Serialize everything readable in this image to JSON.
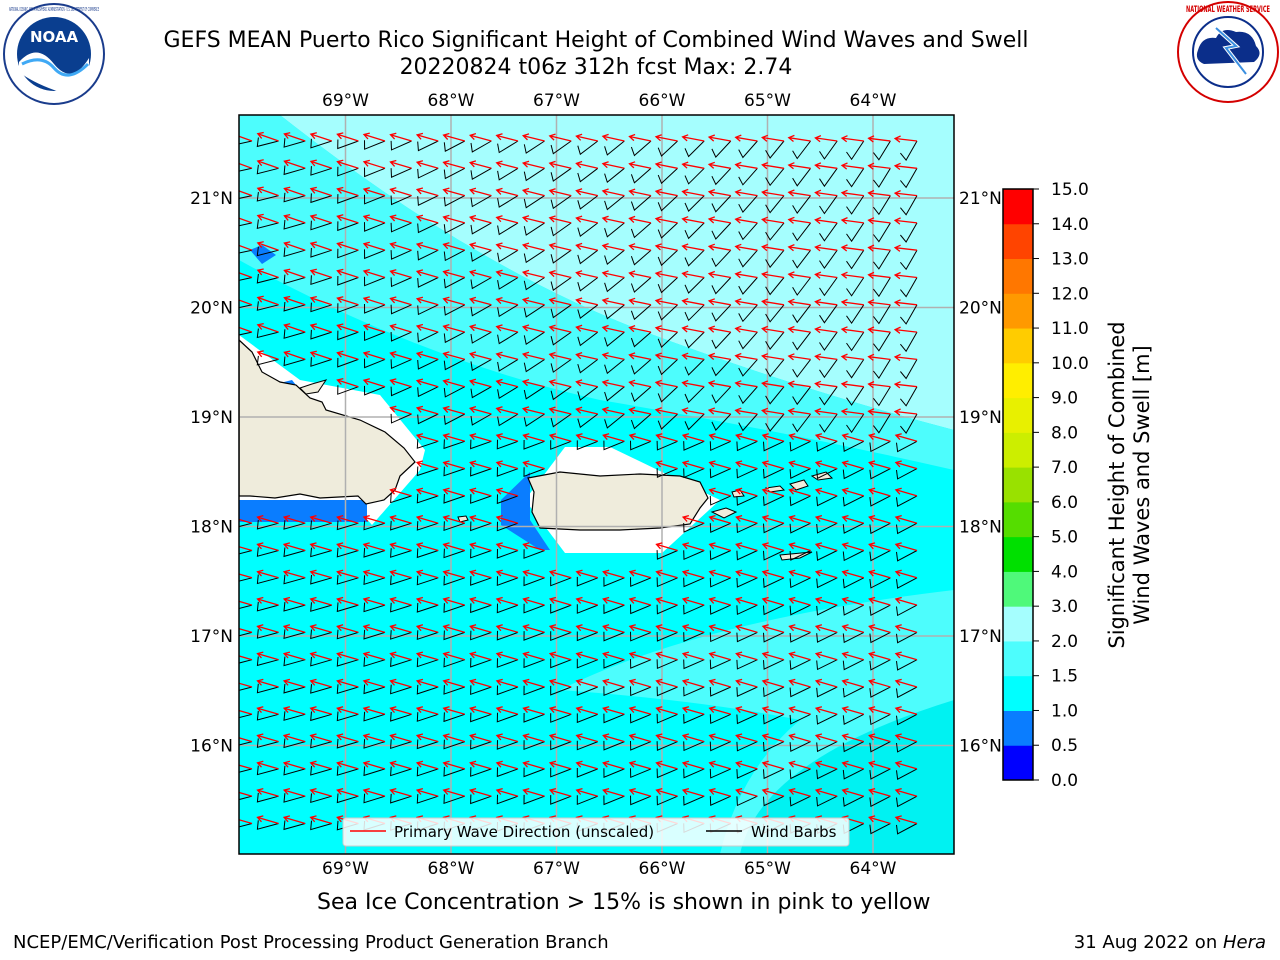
{
  "header": {
    "title_line1": "GEFS MEAN Puerto Rico Significant Height of Combined Wind Waves and Swell",
    "title_line2": "20220824 t06z 312h fcst   Max: 2.74"
  },
  "logos": {
    "left": {
      "icon": "noaa-logo-icon",
      "text": "NOAA",
      "ring_text": "NATIONAL OCEANIC AND ATMOSPHERIC ADMINISTRATION · U.S. DEPARTMENT OF COMMERCE"
    },
    "right": {
      "icon": "nws-logo-icon",
      "ring_text": "NATIONAL WEATHER SERVICE"
    }
  },
  "map": {
    "lon_ticks": [
      "69°W",
      "68°W",
      "67°W",
      "66°W",
      "65°W",
      "64°W"
    ],
    "lat_ticks_left": [
      "21°N",
      "20°N",
      "19°N",
      "18°N",
      "17°N",
      "16°N"
    ],
    "lat_ticks_right": [
      "21°N",
      "20°N",
      "19°N",
      "18°N",
      "17°N",
      "16°N"
    ],
    "legend": {
      "wave_label": "Primary Wave Direction (unscaled)",
      "barb_label": "Wind Barbs"
    },
    "colors": {
      "land": "#efecdc",
      "arrow": "#ff0000",
      "barb": "#000000",
      "grid": "#b0b0b0"
    }
  },
  "colorbar": {
    "label": "Significant Height of Combined\nWind Waves and Swell [m]",
    "label_line1": "Significant Height of Combined",
    "label_line2": "Wind Waves and Swell [m]",
    "ticks": [
      "0.0",
      "0.5",
      "1.0",
      "1.5",
      "2.0",
      "3.0",
      "4.0",
      "5.0",
      "6.0",
      "7.0",
      "8.0",
      "9.0",
      "10.0",
      "11.0",
      "12.0",
      "13.0",
      "14.0",
      "15.0"
    ],
    "colors": [
      "#0000ff",
      "#0a7dff",
      "#00ffff",
      "#4dfdfd",
      "#a5fefe",
      "#4ff97a",
      "#00e000",
      "#55dd00",
      "#99e100",
      "#ccee00",
      "#e8f000",
      "#ffee00",
      "#ffcc00",
      "#ff9900",
      "#ff7700",
      "#ff4400",
      "#ff0000"
    ]
  },
  "chart_data": {
    "type": "heatmap",
    "title": "GEFS MEAN Puerto Rico Significant Height of Combined Wind Waves and Swell",
    "subtitle": "20220824 t06z 312h fcst   Max: 2.74",
    "x_range_lon": [
      -70.0,
      -63.25
    ],
    "y_range_lat": [
      15.0,
      21.75
    ],
    "max_value": 2.74,
    "levels": [
      0.0,
      0.5,
      1.0,
      1.5,
      2.0,
      3.0,
      4.0,
      5.0,
      6.0,
      7.0,
      8.0,
      9.0,
      10.0,
      11.0,
      12.0,
      13.0,
      14.0,
      15.0
    ],
    "units": "m",
    "grid": true,
    "legend_position": "bottom-center",
    "note": "Sea Ice Concentration > 15% is shown in pink to yellow"
  },
  "footer": {
    "left": "NCEP/EMC/Verification Post Processing Product Generation Branch",
    "right_date": "31 Aug 2022 on ",
    "right_host": "Hera"
  }
}
